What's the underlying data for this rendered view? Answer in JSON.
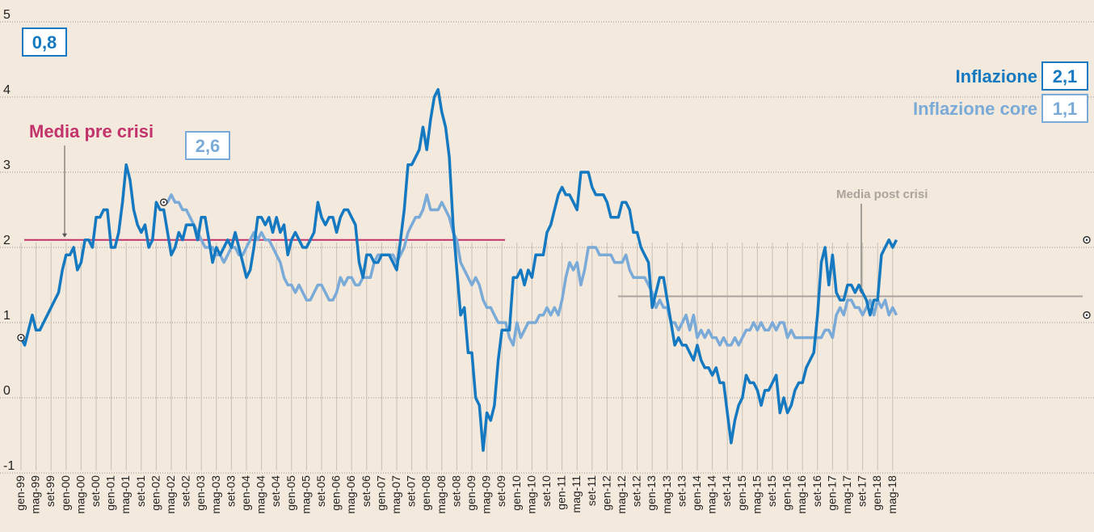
{
  "chart_data": {
    "type": "line",
    "ylim": [
      -1,
      5
    ],
    "yticks": [
      "-1",
      "0",
      "1",
      "2",
      "3",
      "4",
      "5"
    ],
    "ytick_values": [
      -1,
      0,
      1,
      2,
      3,
      4,
      5
    ],
    "x_tick_labels": [
      "gen-99",
      "mag-99",
      "set-99",
      "gen-00",
      "mag-00",
      "set-00",
      "gen-01",
      "mag-01",
      "set-01",
      "gen-02",
      "mag-02",
      "set-02",
      "gen-03",
      "mag-03",
      "set-03",
      "gen-04",
      "mag-04",
      "set-04",
      "gen-05",
      "mag-05",
      "set-05",
      "gen-06",
      "mag-06",
      "set-06",
      "gen-07",
      "mag-07",
      "set-07",
      "gen-08",
      "mag-08",
      "set-08",
      "gen-09",
      "mag-09",
      "set-09",
      "gen-10",
      "mag-10",
      "set-10",
      "gen-11",
      "mag-11",
      "set-11",
      "gen-12",
      "mag-12",
      "set-12",
      "gen-13",
      "mag-13",
      "set-13",
      "gen-14",
      "mag-14",
      "set-14",
      "gen-15",
      "mag-15",
      "set-15",
      "gen-16",
      "mag-16",
      "set-16",
      "gen-17",
      "mag-17",
      "set-17",
      "gen-18",
      "mag-18"
    ],
    "series": [
      {
        "name": "Inflazione",
        "color": "#1479c0",
        "last_value_label": "2,1",
        "start_value_label": "0,8",
        "values": [
          0.8,
          0.7,
          0.9,
          1.1,
          0.9,
          0.9,
          1.0,
          1.1,
          1.2,
          1.3,
          1.4,
          1.7,
          1.9,
          1.9,
          2.0,
          1.7,
          1.8,
          2.1,
          2.1,
          2.0,
          2.4,
          2.4,
          2.5,
          2.5,
          2.0,
          2.0,
          2.2,
          2.6,
          3.1,
          2.9,
          2.5,
          2.3,
          2.2,
          2.3,
          2.0,
          2.1,
          2.6,
          2.5,
          2.5,
          2.2,
          1.9,
          2.0,
          2.2,
          2.1,
          2.3,
          2.3,
          2.3,
          2.1,
          2.4,
          2.4,
          2.1,
          1.8,
          2.0,
          1.9,
          2.0,
          2.1,
          2.0,
          2.2,
          2.0,
          1.8,
          1.6,
          1.7,
          2.0,
          2.4,
          2.4,
          2.3,
          2.4,
          2.2,
          2.4,
          2.2,
          2.3,
          1.9,
          2.1,
          2.2,
          2.1,
          2.0,
          2.0,
          2.1,
          2.2,
          2.6,
          2.4,
          2.3,
          2.4,
          2.4,
          2.2,
          2.4,
          2.5,
          2.5,
          2.4,
          2.3,
          1.8,
          1.6,
          1.9,
          1.9,
          1.8,
          1.8,
          1.9,
          1.9,
          1.9,
          1.8,
          1.7,
          2.1,
          2.5,
          3.1,
          3.1,
          3.2,
          3.3,
          3.6,
          3.3,
          3.7,
          4.0,
          4.1,
          3.8,
          3.6,
          3.2,
          2.3,
          1.7,
          1.1,
          1.2,
          0.6,
          0.6,
          0.0,
          -0.1,
          -0.7,
          -0.2,
          -0.3,
          -0.1,
          0.5,
          0.9,
          0.9,
          0.9,
          1.6,
          1.6,
          1.7,
          1.5,
          1.7,
          1.6,
          1.9,
          1.9,
          1.9,
          2.2,
          2.3,
          2.5,
          2.7,
          2.8,
          2.7,
          2.7,
          2.6,
          2.5,
          3.0,
          3.0,
          3.0,
          2.8,
          2.7,
          2.7,
          2.7,
          2.6,
          2.4,
          2.4,
          2.4,
          2.6,
          2.6,
          2.5,
          2.2,
          2.2,
          2.0,
          1.9,
          1.8,
          1.2,
          1.4,
          1.6,
          1.6,
          1.3,
          1.0,
          0.7,
          0.8,
          0.7,
          0.7,
          0.6,
          0.5,
          0.7,
          0.5,
          0.4,
          0.4,
          0.3,
          0.4,
          0.2,
          0.2,
          -0.2,
          -0.6,
          -0.3,
          -0.1,
          0.0,
          0.3,
          0.2,
          0.2,
          0.1,
          -0.1,
          0.1,
          0.1,
          0.2,
          0.3,
          -0.2,
          0.0,
          -0.2,
          -0.1,
          0.1,
          0.2,
          0.2,
          0.4,
          0.5,
          0.6,
          1.1,
          1.8,
          2.0,
          1.5,
          1.9,
          1.4,
          1.3,
          1.3,
          1.5,
          1.5,
          1.4,
          1.5,
          1.4,
          1.3,
          1.1,
          1.3,
          1.3,
          1.9,
          2.0,
          2.1,
          2.0,
          2.1
        ]
      },
      {
        "name": "Inflazione core",
        "color": "#7aaad7",
        "last_value_label": "1,1",
        "start_value_label": "2,6",
        "values": [
          2.6,
          2.6,
          2.7,
          2.6,
          2.6,
          2.5,
          2.5,
          2.4,
          2.3,
          2.2,
          2.1,
          2.0,
          2.0,
          2.0,
          1.9,
          1.9,
          1.8,
          1.9,
          2.0,
          2.0,
          1.9,
          1.9,
          2.0,
          2.1,
          2.2,
          2.1,
          2.2,
          2.1,
          2.1,
          2.0,
          1.9,
          1.8,
          1.6,
          1.5,
          1.5,
          1.4,
          1.5,
          1.4,
          1.3,
          1.3,
          1.4,
          1.5,
          1.5,
          1.4,
          1.3,
          1.3,
          1.4,
          1.6,
          1.5,
          1.6,
          1.6,
          1.5,
          1.5,
          1.6,
          1.6,
          1.6,
          1.8,
          1.9,
          1.9,
          1.9,
          1.9,
          1.9,
          1.8,
          1.9,
          2.0,
          2.2,
          2.3,
          2.4,
          2.4,
          2.5,
          2.7,
          2.5,
          2.5,
          2.5,
          2.6,
          2.5,
          2.4,
          2.2,
          2.1,
          1.8,
          1.7,
          1.6,
          1.5,
          1.6,
          1.5,
          1.3,
          1.2,
          1.2,
          1.1,
          1.0,
          1.0,
          1.0,
          0.8,
          0.7,
          1.0,
          0.8,
          0.9,
          1.0,
          1.0,
          1.0,
          1.1,
          1.1,
          1.2,
          1.1,
          1.2,
          1.1,
          1.3,
          1.6,
          1.8,
          1.7,
          1.8,
          1.5,
          1.7,
          2.0,
          2.0,
          2.0,
          1.9,
          1.9,
          1.9,
          1.9,
          1.8,
          1.8,
          1.8,
          1.9,
          1.7,
          1.6,
          1.6,
          1.6,
          1.6,
          1.5,
          1.4,
          1.2,
          1.3,
          1.2,
          1.2,
          1.0,
          1.0,
          0.9,
          1.0,
          1.1,
          0.9,
          1.1,
          0.8,
          0.9,
          0.8,
          0.9,
          0.8,
          0.8,
          0.7,
          0.8,
          0.7,
          0.7,
          0.8,
          0.7,
          0.8,
          0.9,
          0.9,
          1.0,
          0.9,
          1.0,
          0.9,
          0.9,
          1.0,
          0.9,
          1.0,
          1.0,
          0.8,
          0.9,
          0.8,
          0.8,
          0.8,
          0.8,
          0.8,
          0.8,
          0.8,
          0.8,
          0.9,
          0.9,
          0.8,
          1.1,
          1.2,
          1.1,
          1.3,
          1.3,
          1.2,
          1.2,
          1.1,
          1.2,
          1.3,
          1.1,
          1.3,
          1.2,
          1.3,
          1.1,
          1.2,
          1.1
        ]
      }
    ],
    "reference_lines": [
      {
        "label": "Media pre crisi",
        "value": 2.1,
        "color": "#c2336b"
      },
      {
        "label": "Media post crisi",
        "value": 1.35,
        "color": "#aaa49d"
      }
    ],
    "grid": true,
    "legend": "top-right"
  },
  "labels": {
    "inflazione": "Inflazione",
    "inflazione_core": "Inflazione core",
    "inflazione_value": "2,1",
    "core_value": "1,1",
    "start_infl": "0,8",
    "start_core": "2,6",
    "media_pre": "Media pre crisi",
    "media_post": "Media post crisi"
  }
}
